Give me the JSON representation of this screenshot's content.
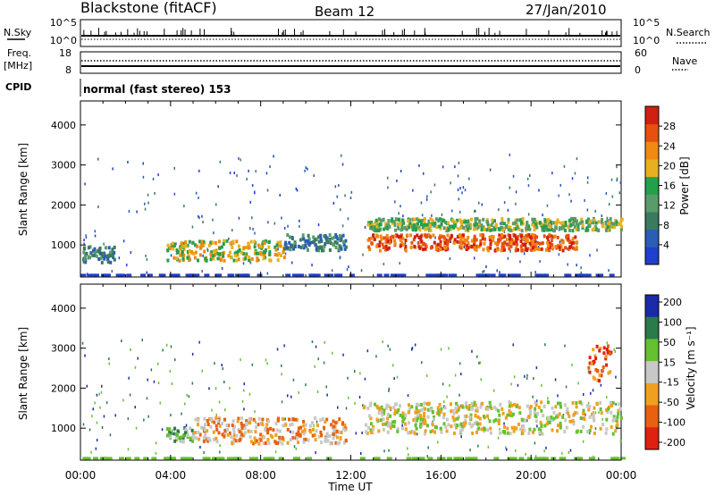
{
  "header": {
    "station": "Blackstone (fitACF)",
    "beam": "Beam 12",
    "date": "27/Jan/2010"
  },
  "strip": {
    "nsky_label": "N.Sky",
    "nsky_top": "10^5",
    "nsky_bottom": "10^0",
    "nsearch_label": "N.Search",
    "nsearch_top": "10^5",
    "nsearch_bottom": "10^0",
    "freq_label": "Freq.",
    "freq_unit": "[MHz]",
    "freq_top": "18",
    "freq_bottom": "8",
    "nave_label": "Nave",
    "nave_top": "60",
    "nave_bottom": "0",
    "cpid_label": "CPID",
    "cpid_text": "normal (fast stereo) 153"
  },
  "colors": {
    "power_scale": [
      "#1f3fcc",
      "#2a5db4",
      "#3a7a5e",
      "#5a9b6b",
      "#22a04a",
      "#e8b020",
      "#f08a10",
      "#e85010",
      "#d02010"
    ],
    "velocity_scale": [
      "#1a2aa8",
      "#2a7a4a",
      "#66c030",
      "#c8c8c8",
      "#f0a020",
      "#e86010",
      "#e02010"
    ]
  },
  "chart_data": [
    {
      "type": "heatmap",
      "title": "",
      "xlabel": "Time UT",
      "ylabel": "Slant Range [km]",
      "xlim": [
        0,
        24
      ],
      "ylim": [
        200,
        4600
      ],
      "x_ticks": [
        "00:00",
        "04:00",
        "08:00",
        "12:00",
        "16:00",
        "20:00",
        "00:00"
      ],
      "y_ticks": [
        1000,
        2000,
        3000,
        4000
      ],
      "colorbar": {
        "label": "Power [dB]",
        "ticks": [
          4,
          8,
          12,
          16,
          20,
          24,
          28
        ]
      },
      "regions": [
        {
          "t_start": 0.0,
          "t_end": 1.5,
          "r_low": 600,
          "r_high": 1000,
          "level": 2
        },
        {
          "t_start": 3.8,
          "t_end": 9.0,
          "r_low": 650,
          "r_high": 1150,
          "level": 5
        },
        {
          "t_start": 9.0,
          "t_end": 11.8,
          "r_low": 900,
          "r_high": 1300,
          "level": 2
        },
        {
          "t_start": 12.7,
          "t_end": 22.0,
          "r_low": 900,
          "r_high": 1300,
          "level": 7
        },
        {
          "t_start": 12.7,
          "t_end": 24.0,
          "r_low": 1400,
          "r_high": 1700,
          "level": 4
        }
      ]
    },
    {
      "type": "heatmap",
      "title": "",
      "xlabel": "Time UT",
      "ylabel": "Slant Range [km]",
      "xlim": [
        0,
        24
      ],
      "ylim": [
        200,
        4600
      ],
      "x_ticks": [
        "00:00",
        "04:00",
        "08:00",
        "12:00",
        "16:00",
        "20:00",
        "00:00"
      ],
      "y_ticks": [
        1000,
        2000,
        3000,
        4000
      ],
      "colorbar": {
        "label": "Velocity [m s⁻¹]",
        "ticks": [
          "200",
          "100",
          "50",
          "15",
          "-15",
          "-50",
          "-100",
          "-200"
        ]
      },
      "regions": [
        {
          "t_start": 3.8,
          "t_end": 5.0,
          "r_low": 700,
          "r_high": 1050,
          "level": 2
        },
        {
          "t_start": 5.0,
          "t_end": 11.8,
          "r_low": 650,
          "r_high": 1300,
          "level": 4
        },
        {
          "t_start": 12.5,
          "t_end": 24.0,
          "r_low": 900,
          "r_high": 1700,
          "level": 3
        },
        {
          "t_start": 22.5,
          "t_end": 23.5,
          "r_low": 2200,
          "r_high": 3100,
          "level": 5
        }
      ]
    }
  ]
}
